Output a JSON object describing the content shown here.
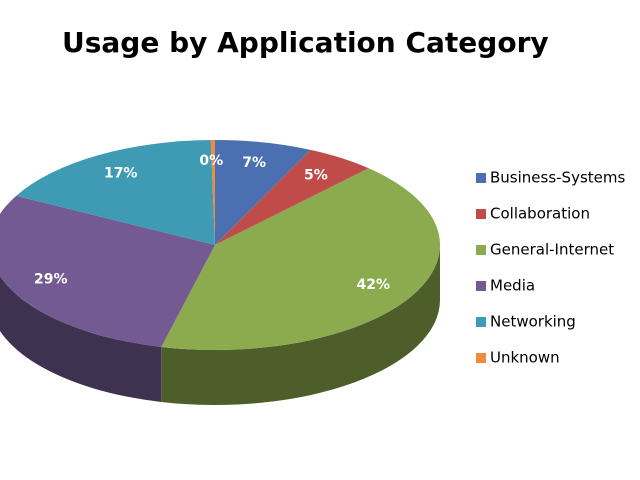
{
  "chart_data": {
    "type": "pie",
    "title": "Usage by Application Category",
    "categories": [
      "Business-Systems",
      "Collaboration",
      "General-Internet",
      "Media",
      "Networking",
      "Unknown"
    ],
    "values": [
      7,
      5,
      42,
      29,
      17,
      0.3
    ],
    "value_labels": [
      "7%",
      "5%",
      "42%",
      "29%",
      "17%",
      "0%"
    ],
    "colors": [
      "#4a70b2",
      "#bf4c49",
      "#8cab4f",
      "#735a92",
      "#3f9ab4",
      "#f08a3c"
    ],
    "legend": "right"
  }
}
